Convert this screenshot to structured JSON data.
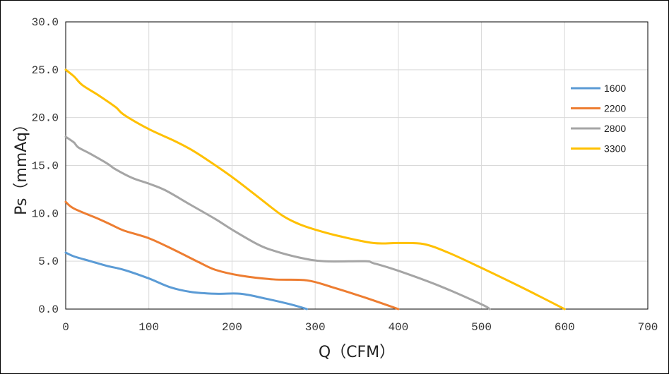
{
  "chart_data": {
    "type": "line",
    "xlabel": "Q（CFM）",
    "ylabel": "Ps（mmAq）",
    "xlim": [
      0,
      700
    ],
    "ylim": [
      0,
      30
    ],
    "x_ticks": [
      "0",
      "100",
      "200",
      "300",
      "400",
      "500",
      "600",
      "700"
    ],
    "y_ticks": [
      "0.0",
      "5.0",
      "10.0",
      "15.0",
      "20.0",
      "25.0",
      "30.0"
    ],
    "grid": true,
    "legend_position": "right",
    "series": [
      {
        "name": "1600",
        "color": "#5b9bd5",
        "points": [
          [
            0,
            5.9
          ],
          [
            10,
            5.5
          ],
          [
            30,
            5.0
          ],
          [
            50,
            4.5
          ],
          [
            70,
            4.1
          ],
          [
            100,
            3.2
          ],
          [
            125,
            2.3
          ],
          [
            150,
            1.8
          ],
          [
            180,
            1.6
          ],
          [
            210,
            1.6
          ],
          [
            240,
            1.1
          ],
          [
            270,
            0.5
          ],
          [
            290,
            0.0
          ]
        ]
      },
      {
        "name": "2200",
        "color": "#ed7d31",
        "points": [
          [
            0,
            11.2
          ],
          [
            10,
            10.5
          ],
          [
            40,
            9.4
          ],
          [
            55,
            8.8
          ],
          [
            70,
            8.2
          ],
          [
            100,
            7.4
          ],
          [
            130,
            6.2
          ],
          [
            160,
            4.9
          ],
          [
            180,
            4.1
          ],
          [
            210,
            3.5
          ],
          [
            250,
            3.1
          ],
          [
            290,
            3.0
          ],
          [
            320,
            2.3
          ],
          [
            360,
            1.2
          ],
          [
            400,
            0.0
          ]
        ]
      },
      {
        "name": "2800",
        "color": "#a5a5a5",
        "points": [
          [
            0,
            18.0
          ],
          [
            10,
            17.4
          ],
          [
            15,
            16.9
          ],
          [
            30,
            16.2
          ],
          [
            50,
            15.2
          ],
          [
            60,
            14.6
          ],
          [
            80,
            13.7
          ],
          [
            100,
            13.1
          ],
          [
            120,
            12.4
          ],
          [
            150,
            10.9
          ],
          [
            180,
            9.4
          ],
          [
            200,
            8.3
          ],
          [
            230,
            6.8
          ],
          [
            250,
            6.1
          ],
          [
            280,
            5.4
          ],
          [
            310,
            5.0
          ],
          [
            360,
            5.0
          ],
          [
            370,
            4.8
          ],
          [
            400,
            4.0
          ],
          [
            450,
            2.4
          ],
          [
            500,
            0.5
          ],
          [
            510,
            0.0
          ]
        ]
      },
      {
        "name": "3300",
        "color": "#ffc000",
        "points": [
          [
            0,
            25.0
          ],
          [
            10,
            24.3
          ],
          [
            20,
            23.4
          ],
          [
            40,
            22.3
          ],
          [
            60,
            21.1
          ],
          [
            70,
            20.3
          ],
          [
            100,
            18.8
          ],
          [
            130,
            17.6
          ],
          [
            150,
            16.7
          ],
          [
            170,
            15.6
          ],
          [
            200,
            13.8
          ],
          [
            230,
            11.8
          ],
          [
            260,
            9.8
          ],
          [
            280,
            8.9
          ],
          [
            300,
            8.3
          ],
          [
            330,
            7.6
          ],
          [
            370,
            6.9
          ],
          [
            400,
            6.9
          ],
          [
            430,
            6.8
          ],
          [
            460,
            5.9
          ],
          [
            500,
            4.3
          ],
          [
            550,
            2.2
          ],
          [
            600,
            0.0
          ]
        ]
      }
    ]
  }
}
